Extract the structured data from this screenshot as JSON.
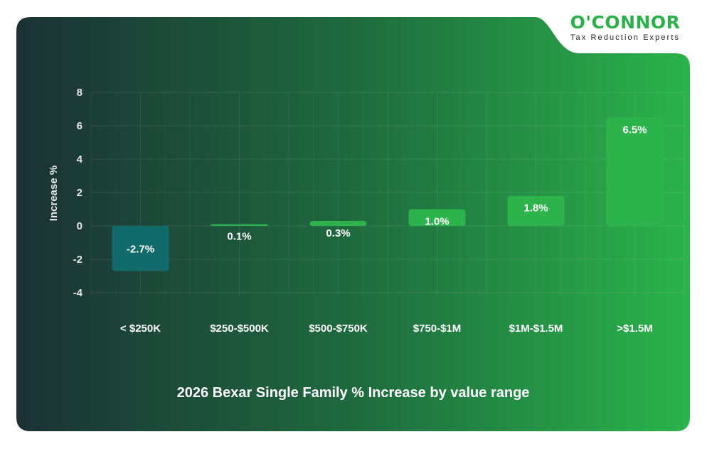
{
  "logo": {
    "name": "O'CONNOR",
    "tagline": "Tax Reduction Experts"
  },
  "colors": {
    "card_left": "#1b3134",
    "card_right": "#2bb34b",
    "negative_bar": "#126b6b",
    "positive_bar": "#2db34c",
    "logo": "#2bb04a"
  },
  "chart_data": {
    "type": "bar",
    "title": "2026 Bexar Single Family % Increase by value range",
    "xlabel": "",
    "ylabel": "Increase %",
    "categories": [
      "< $250K",
      "$250-$500K",
      "$500-$750K",
      "$750-$1M",
      "$1M-$1.5M",
      ">$1.5M"
    ],
    "values": [
      -2.7,
      0.1,
      0.3,
      1.0,
      1.8,
      6.5
    ],
    "data_labels": [
      "-2.7%",
      "0.1%",
      "0.3%",
      "1.0%",
      "1.8%",
      "6.5%"
    ],
    "ylim": [
      -4,
      8
    ],
    "yticks": [
      "8",
      "6",
      "4",
      "2",
      "0",
      "-2",
      "-4"
    ],
    "grid": true,
    "legend": "none"
  }
}
